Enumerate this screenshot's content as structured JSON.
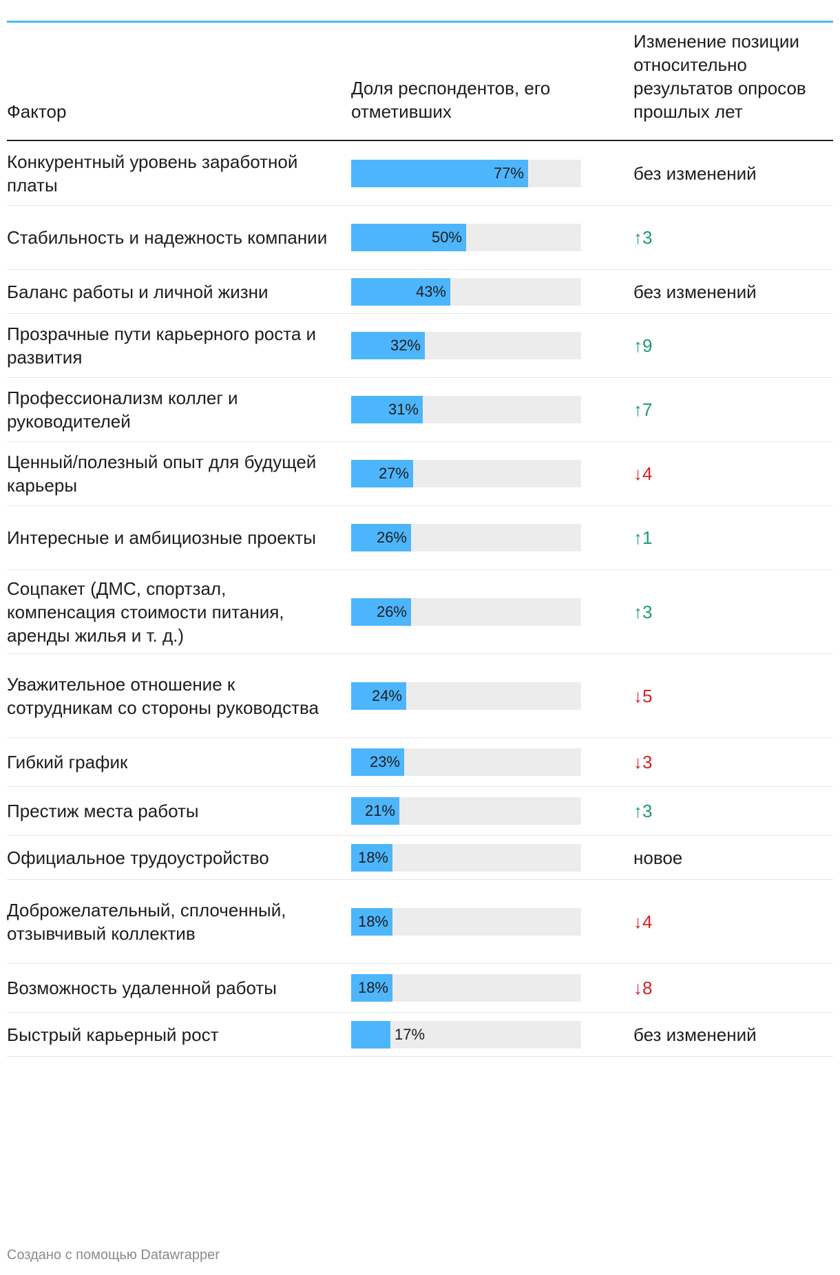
{
  "header": {
    "factor": "Фактор",
    "share": "Доля респондентов, его отметивших",
    "change": "Изменение позиции относительно результатов опросов прошлых лет"
  },
  "colors": {
    "bar": "#4db5fb",
    "track": "#ececec",
    "up": "#1a9a73",
    "down": "#d32028",
    "rule": "#4db8f0"
  },
  "chart_data": {
    "type": "table",
    "columns": [
      "Фактор",
      "Доля респондентов, его отметивших",
      "Изменение позиции относительно результатов опросов прошлых лет"
    ],
    "unit": "%",
    "max": 100,
    "rows": [
      {
        "factor": "Конкурентный уровень заработной платы",
        "value": 77,
        "label": "77%",
        "change": "без изменений",
        "dir": "same"
      },
      {
        "factor": "Стабильность и надежность компании",
        "value": 50,
        "label": "50%",
        "change": "↑3",
        "dir": "up"
      },
      {
        "factor": "Баланс работы и личной жизни",
        "value": 43,
        "label": "43%",
        "change": "без изменений",
        "dir": "same"
      },
      {
        "factor": "Прозрачные пути карьерного роста и развития",
        "value": 32,
        "label": "32%",
        "change": "↑9",
        "dir": "up"
      },
      {
        "factor": "Профессионализм коллег и руководителей",
        "value": 31,
        "label": "31%",
        "change": "↑7",
        "dir": "up"
      },
      {
        "factor": "Ценный/полезный опыт для будущей карьеры",
        "value": 27,
        "label": "27%",
        "change": "↓4",
        "dir": "down"
      },
      {
        "factor": "Интересные и амбициозные проекты",
        "value": 26,
        "label": "26%",
        "change": "↑1",
        "dir": "up"
      },
      {
        "factor": "Соцпакет (ДМС, спортзал, компенсация стоимости питания, аренды жилья и т. д.)",
        "value": 26,
        "label": "26%",
        "change": "↑3",
        "dir": "up"
      },
      {
        "factor": "Уважительное отношение к сотрудникам со стороны руководства",
        "value": 24,
        "label": "24%",
        "change": "↓5",
        "dir": "down"
      },
      {
        "factor": "Гибкий график",
        "value": 23,
        "label": "23%",
        "change": "↓3",
        "dir": "down"
      },
      {
        "factor": "Престиж места работы",
        "value": 21,
        "label": "21%",
        "change": "↑3",
        "dir": "up"
      },
      {
        "factor": "Официальное трудоустройство",
        "value": 18,
        "label": "18%",
        "change": "новое",
        "dir": "same"
      },
      {
        "factor": "Доброжелательный, сплоченный, отзывчивый коллектив",
        "value": 18,
        "label": "18%",
        "change": "↓4",
        "dir": "down"
      },
      {
        "factor": "Возможность удаленной работы",
        "value": 18,
        "label": "18%",
        "change": "↓8",
        "dir": "down"
      },
      {
        "factor": "Быстрый карьерный рост",
        "value": 17,
        "label": "17%",
        "change": "без изменений",
        "dir": "same"
      }
    ]
  },
  "footer": {
    "credit": "Создано с помощью Datawrapper"
  }
}
